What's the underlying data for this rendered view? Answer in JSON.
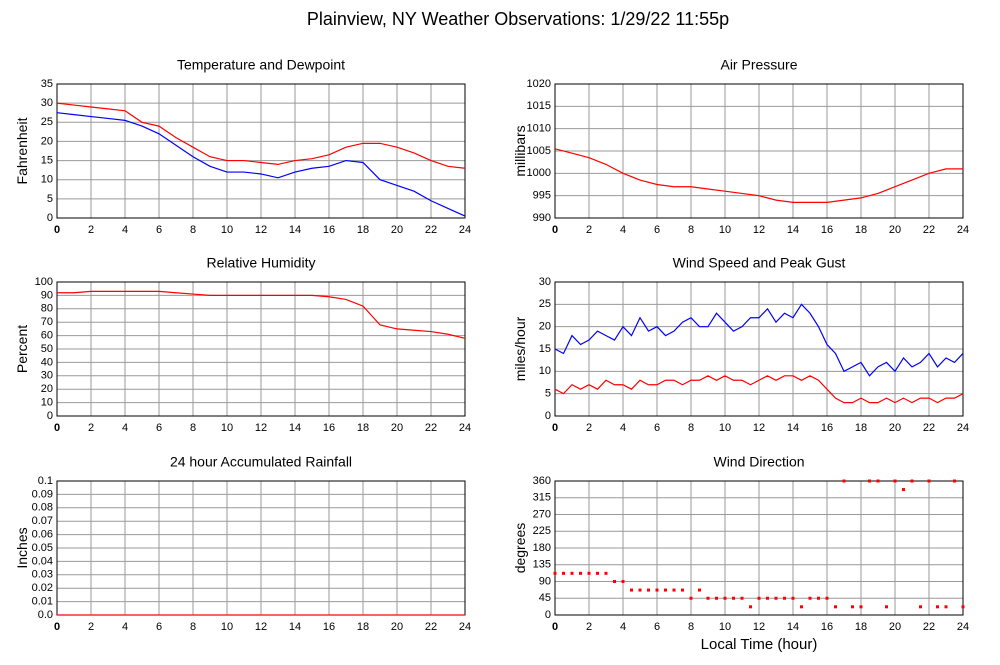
{
  "title": "Plainview, NY Weather Observations: 1/29/22 11:55p",
  "chart_data": [
    {
      "type": "line",
      "title": "Temperature and Dewpoint",
      "ylabel": "Fahrenheit",
      "x": [
        0,
        1,
        2,
        3,
        4,
        5,
        6,
        7,
        8,
        9,
        10,
        11,
        12,
        13,
        14,
        15,
        16,
        17,
        18,
        19,
        20,
        21,
        22,
        23,
        24
      ],
      "xlim": [
        0,
        24
      ],
      "xticks": [
        0,
        2,
        4,
        6,
        8,
        10,
        12,
        14,
        16,
        18,
        20,
        22,
        24
      ],
      "ylim": [
        0,
        35
      ],
      "yticks": [
        0,
        5,
        10,
        15,
        20,
        25,
        30,
        35
      ],
      "grid": true,
      "series": [
        {
          "color": "#ff0000",
          "values": [
            30,
            29.5,
            29,
            28.5,
            28,
            25,
            24,
            21,
            18.5,
            16,
            15,
            15,
            14.5,
            14,
            15,
            15.5,
            16.5,
            18.5,
            19.5,
            19.5,
            18.5,
            17,
            15,
            13.5,
            13
          ]
        },
        {
          "color": "#0000ff",
          "values": [
            27.5,
            27,
            26.5,
            26,
            25.5,
            24,
            22,
            19,
            16,
            13.5,
            12,
            12,
            11.5,
            10.5,
            12,
            13,
            13.5,
            15,
            14.5,
            10,
            8.5,
            7,
            4.5,
            2.5,
            0.5
          ]
        }
      ]
    },
    {
      "type": "line",
      "title": "Air Pressure",
      "ylabel": "millibars",
      "x": [
        0,
        1,
        2,
        3,
        4,
        5,
        6,
        7,
        8,
        9,
        10,
        11,
        12,
        13,
        14,
        15,
        16,
        17,
        18,
        19,
        20,
        21,
        22,
        23,
        24
      ],
      "xlim": [
        0,
        24
      ],
      "xticks": [
        0,
        2,
        4,
        6,
        8,
        10,
        12,
        14,
        16,
        18,
        20,
        22,
        24
      ],
      "ylim": [
        990,
        1020
      ],
      "yticks": [
        990,
        995,
        1000,
        1005,
        1010,
        1015,
        1020
      ],
      "grid": true,
      "series": [
        {
          "color": "#ff0000",
          "values": [
            1005.5,
            1004.5,
            1003.5,
            1002,
            1000,
            998.5,
            997.5,
            997,
            997,
            996.5,
            996,
            995.5,
            995,
            994,
            993.5,
            993.5,
            993.5,
            994,
            994.5,
            995.5,
            997,
            998.5,
            1000,
            1001,
            1001
          ]
        }
      ]
    },
    {
      "type": "line",
      "title": "Relative Humidity",
      "ylabel": "Percent",
      "x": [
        0,
        1,
        2,
        3,
        4,
        5,
        6,
        7,
        8,
        9,
        10,
        11,
        12,
        13,
        14,
        15,
        16,
        17,
        18,
        19,
        20,
        21,
        22,
        23,
        24
      ],
      "xlim": [
        0,
        24
      ],
      "xticks": [
        0,
        2,
        4,
        6,
        8,
        10,
        12,
        14,
        16,
        18,
        20,
        22,
        24
      ],
      "ylim": [
        0,
        100
      ],
      "yticks": [
        0,
        10,
        20,
        30,
        40,
        50,
        60,
        70,
        80,
        90,
        100
      ],
      "grid": true,
      "series": [
        {
          "color": "#ff0000",
          "values": [
            92,
            92,
            93,
            93,
            93,
            93,
            93,
            92,
            91,
            90,
            90,
            90,
            90,
            90,
            90,
            90,
            89,
            87,
            82,
            68,
            65,
            64,
            63,
            61,
            58
          ]
        }
      ]
    },
    {
      "type": "line",
      "title": "Wind Speed and Peak Gust",
      "ylabel": "miles/hour",
      "x": [
        0,
        0.5,
        1,
        1.5,
        2,
        2.5,
        3,
        3.5,
        4,
        4.5,
        5,
        5.5,
        6,
        6.5,
        7,
        7.5,
        8,
        8.5,
        9,
        9.5,
        10,
        10.5,
        11,
        11.5,
        12,
        12.5,
        13,
        13.5,
        14,
        14.5,
        15,
        15.5,
        16,
        16.5,
        17,
        17.5,
        18,
        18.5,
        19,
        19.5,
        20,
        20.5,
        21,
        21.5,
        22,
        22.5,
        23,
        23.5,
        24
      ],
      "xlim": [
        0,
        24
      ],
      "xticks": [
        0,
        2,
        4,
        6,
        8,
        10,
        12,
        14,
        16,
        18,
        20,
        22,
        24
      ],
      "ylim": [
        0,
        30
      ],
      "yticks": [
        0,
        5,
        10,
        15,
        20,
        25,
        30
      ],
      "grid": true,
      "series": [
        {
          "color": "#0000ff",
          "values": [
            15,
            14,
            18,
            16,
            17,
            19,
            18,
            17,
            20,
            18,
            22,
            19,
            20,
            18,
            19,
            21,
            22,
            20,
            20,
            23,
            21,
            19,
            20,
            22,
            22,
            24,
            21,
            23,
            22,
            25,
            23,
            20,
            16,
            14,
            10,
            11,
            12,
            9,
            11,
            12,
            10,
            13,
            11,
            12,
            14,
            11,
            13,
            12,
            14
          ]
        },
        {
          "color": "#ff0000",
          "values": [
            6,
            5,
            7,
            6,
            7,
            6,
            8,
            7,
            7,
            6,
            8,
            7,
            7,
            8,
            8,
            7,
            8,
            8,
            9,
            8,
            9,
            8,
            8,
            7,
            8,
            9,
            8,
            9,
            9,
            8,
            9,
            8,
            6,
            4,
            3,
            3,
            4,
            3,
            3,
            4,
            3,
            4,
            3,
            4,
            4,
            3,
            4,
            4,
            5
          ]
        }
      ]
    },
    {
      "type": "line",
      "title": "24 hour Accumulated Rainfall",
      "ylabel": "Inches",
      "x": [
        0,
        24
      ],
      "xlim": [
        0,
        24
      ],
      "xticks": [
        0,
        2,
        4,
        6,
        8,
        10,
        12,
        14,
        16,
        18,
        20,
        22,
        24
      ],
      "ylim": [
        0,
        0.1
      ],
      "yticks": [
        {
          "value": 0,
          "label": "0.0"
        },
        0.01,
        0.02,
        0.03,
        0.04,
        0.05,
        0.06,
        0.07,
        0.08,
        0.09,
        0.1
      ],
      "grid": true,
      "series": [
        {
          "color": "#ff0000",
          "values": [
            0,
            0
          ]
        }
      ]
    },
    {
      "type": "scatter",
      "title": "Wind Direction",
      "ylabel": "degrees",
      "xlabel": "Local Time (hour)",
      "x": [
        0,
        0.5,
        1,
        1.5,
        2,
        2.5,
        3,
        3.5,
        4,
        4.5,
        5,
        5.5,
        6,
        6.5,
        7,
        7.5,
        8,
        8.5,
        9,
        9.5,
        10,
        10.5,
        11,
        11.5,
        12,
        12.5,
        13,
        13.5,
        14,
        14.5,
        15,
        15.5,
        16,
        16.5,
        17,
        17.5,
        18,
        18.5,
        19,
        19.5,
        20,
        20.5,
        21,
        21.5,
        22,
        22.5,
        23,
        23.5,
        24
      ],
      "xlim": [
        0,
        24
      ],
      "xticks": [
        0,
        2,
        4,
        6,
        8,
        10,
        12,
        14,
        16,
        18,
        20,
        22,
        24
      ],
      "ylim": [
        0,
        360
      ],
      "yticks": [
        0,
        45,
        90,
        135,
        180,
        225,
        270,
        315,
        360
      ],
      "grid": true,
      "series": [
        {
          "color": "#ff0000",
          "values": [
            112,
            112,
            112,
            112,
            112,
            112,
            112,
            90,
            90,
            67,
            67,
            67,
            67,
            67,
            67,
            67,
            45,
            67,
            45,
            45,
            45,
            45,
            45,
            22,
            45,
            45,
            45,
            45,
            45,
            22,
            45,
            45,
            45,
            22,
            360,
            22,
            22,
            360,
            360,
            22,
            360,
            337,
            360,
            22,
            360,
            22,
            22,
            360,
            22
          ]
        }
      ]
    }
  ]
}
